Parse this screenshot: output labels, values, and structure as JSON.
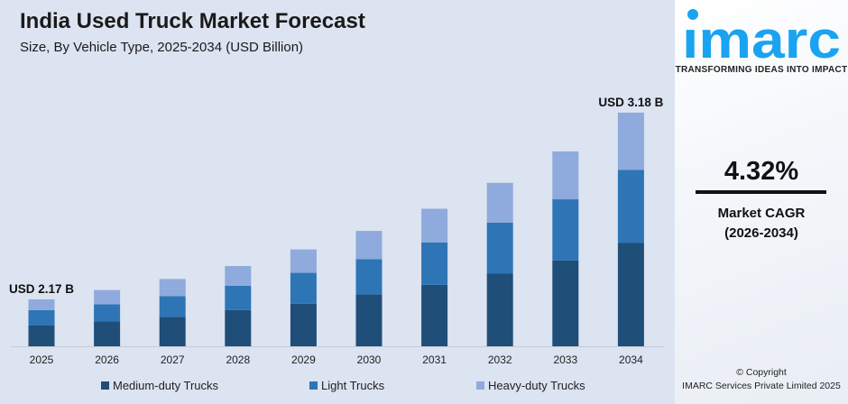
{
  "title": "India Used Truck Market Forecast",
  "subtitle": "Size, By Vehicle Type, 2025-2034 (USD Billion)",
  "chart_data": {
    "type": "bar",
    "stacked": true,
    "title": "India Used Truck Market Forecast",
    "subtitle": "Size, By Vehicle Type, 2025-2034 (USD Billion)",
    "categories": [
      "2025",
      "2026",
      "2027",
      "2028",
      "2029",
      "2030",
      "2031",
      "2032",
      "2033",
      "2034"
    ],
    "series": [
      {
        "name": "Medium-duty Trucks",
        "color": "#1f4e79",
        "values": [
          0.96,
          0.99,
          1.0,
          1.06,
          1.07,
          1.14,
          1.19,
          1.25,
          1.31,
          1.41
        ]
      },
      {
        "name": "Light Trucks",
        "color": "#2e75b6",
        "values": [
          0.71,
          0.67,
          0.7,
          0.71,
          0.78,
          0.78,
          0.82,
          0.87,
          0.93,
          0.99
        ]
      },
      {
        "name": "Heavy-duty Trucks",
        "color": "#8faadc",
        "values": [
          0.5,
          0.56,
          0.58,
          0.58,
          0.59,
          0.62,
          0.65,
          0.68,
          0.73,
          0.78
        ]
      }
    ],
    "totals": [
      2.17,
      2.22,
      2.28,
      2.35,
      2.44,
      2.54,
      2.66,
      2.8,
      2.97,
      3.18
    ],
    "annotations": [
      {
        "category": "2025",
        "text": "USD 2.17 B"
      },
      {
        "category": "2034",
        "text": "USD 3.18 B"
      }
    ],
    "grid": false,
    "legend": "bottom"
  },
  "side": {
    "logo": "imarc",
    "logo_color": "#1aa3f0",
    "tagline": "TRANSFORMING IDEAS INTO IMPACT",
    "cagr": "4.32%",
    "cagr_label": "Market CAGR",
    "cagr_period": "(2026-2034)",
    "copyright": "© Copyright",
    "company": "IMARC Services Private Limited 2025"
  }
}
